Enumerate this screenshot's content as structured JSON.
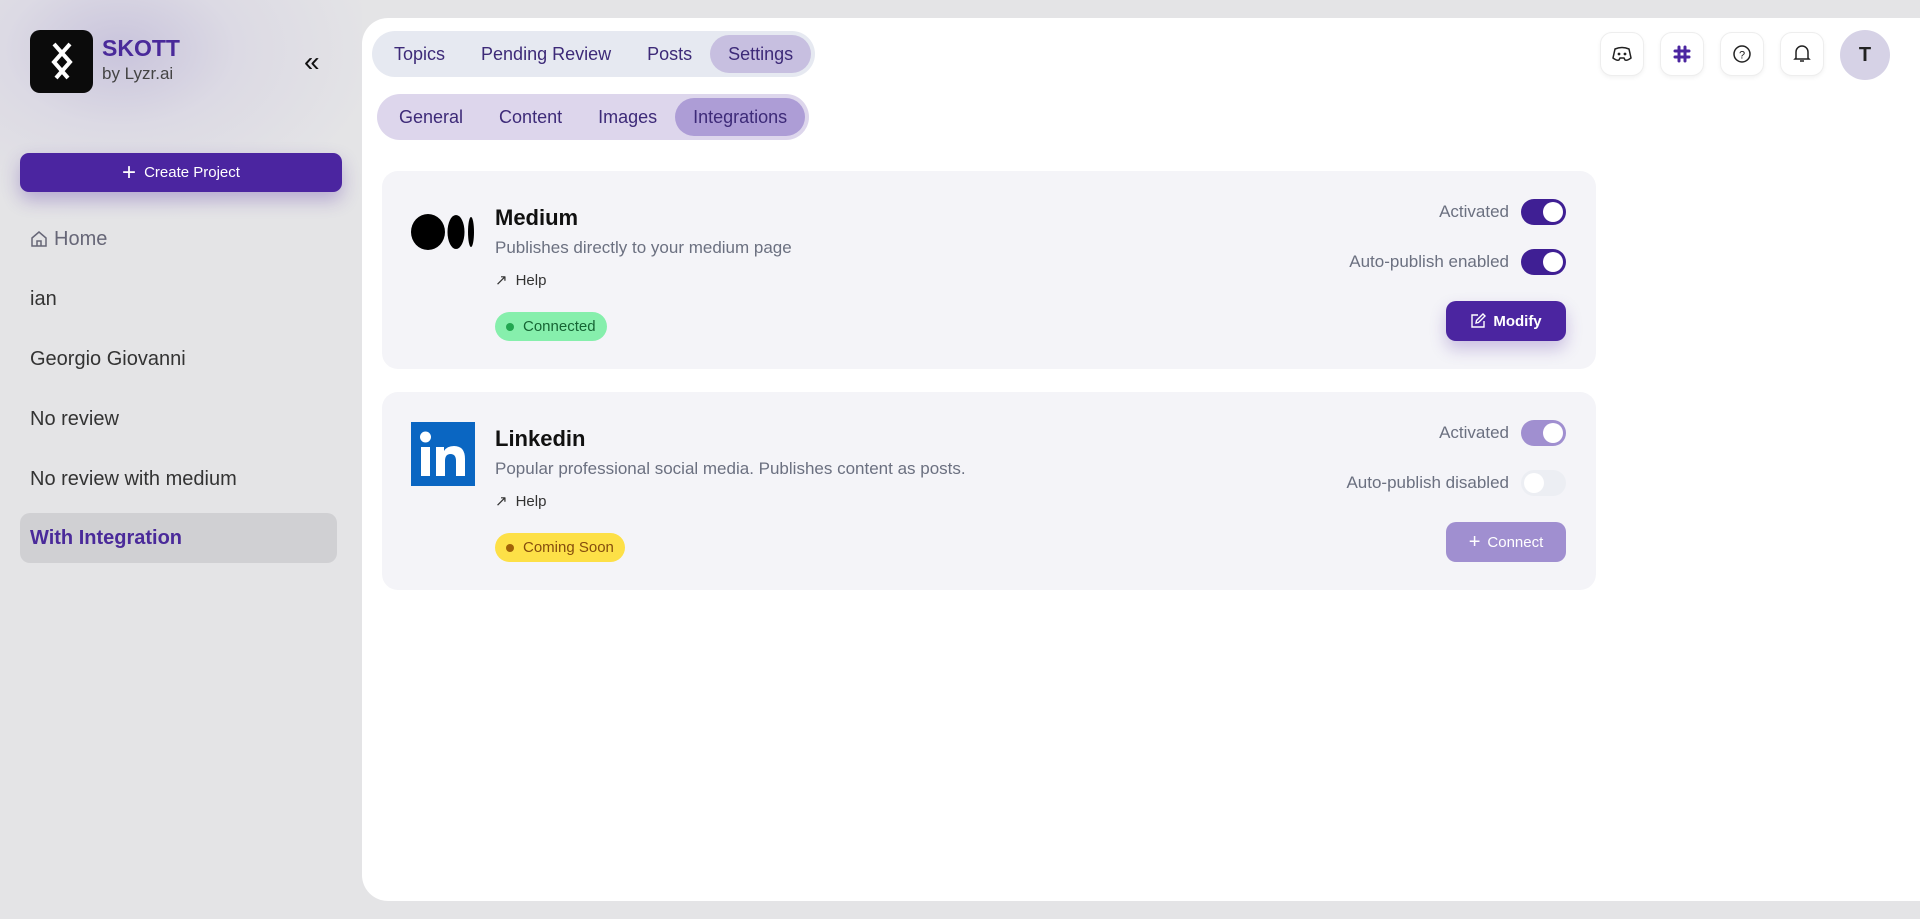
{
  "app": {
    "name": "SKOTT",
    "subtitle": "by Lyzr.ai"
  },
  "sidebar": {
    "create_label": "Create Project",
    "items": [
      {
        "label": "Home"
      },
      {
        "label": "ian"
      },
      {
        "label": "Georgio Giovanni"
      },
      {
        "label": "No review"
      },
      {
        "label": "No review with medium"
      },
      {
        "label": "With Integration",
        "active": true
      }
    ]
  },
  "tabs": [
    {
      "label": "Topics"
    },
    {
      "label": "Pending Review"
    },
    {
      "label": "Posts"
    },
    {
      "label": "Settings",
      "active": true
    }
  ],
  "subtabs": [
    {
      "label": "General"
    },
    {
      "label": "Content"
    },
    {
      "label": "Images"
    },
    {
      "label": "Integrations",
      "active": true
    }
  ],
  "header": {
    "icons": [
      "discord-icon",
      "slack-icon",
      "help-icon",
      "bell-icon"
    ],
    "avatar": "T"
  },
  "integrations": [
    {
      "name": "Medium",
      "description": "Publishes directly to your medium page",
      "help": "Help",
      "status": "Connected",
      "status_color": "#86efac",
      "activated_label": "Activated",
      "activated": true,
      "autopublish_label": "Auto-publish enabled",
      "autopublish": true,
      "action": "Modify"
    },
    {
      "name": "Linkedin",
      "description": "Popular professional social media. Publishes content as posts.",
      "help": "Help",
      "status": "Coming Soon",
      "status_color": "#fde047",
      "activated_label": "Activated",
      "activated": true,
      "autopublish_label": "Auto-publish disabled",
      "autopublish": false,
      "action": "Connect"
    }
  ],
  "colors": {
    "accent": "#4b25a0",
    "accent_disabled": "#a08fd0"
  }
}
